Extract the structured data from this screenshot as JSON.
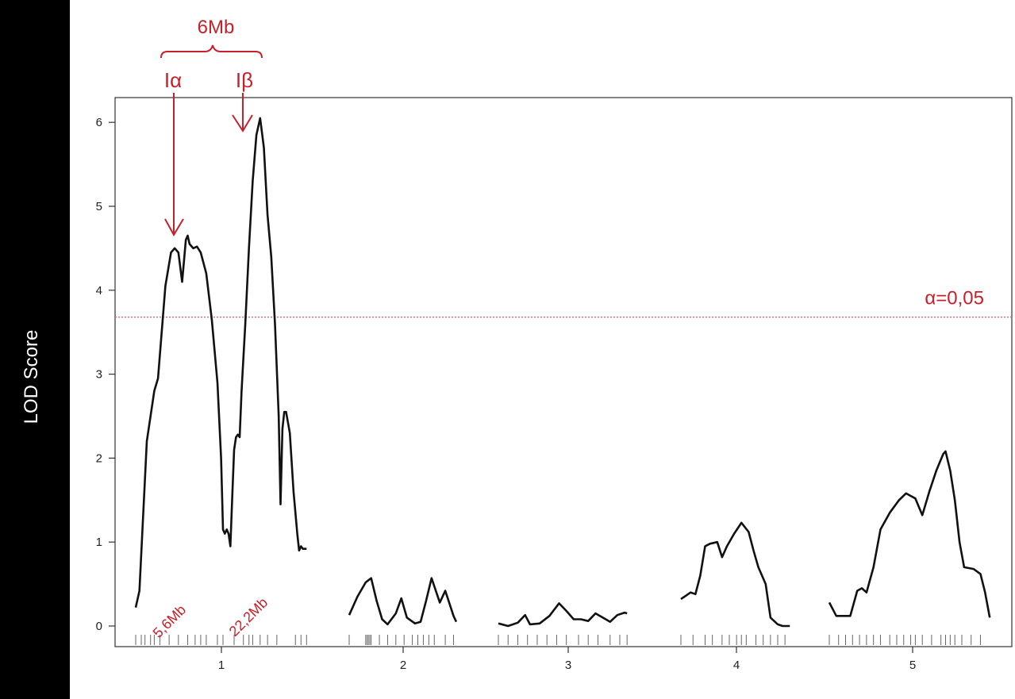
{
  "chart_data": {
    "type": "line",
    "title": "",
    "xlabel": "",
    "ylabel": "LOD Score",
    "ylim": [
      -0.25,
      6.25
    ],
    "yticks": [
      "0",
      "1",
      "2",
      "3",
      "4",
      "5",
      "6"
    ],
    "chromosomes": [
      "1",
      "2",
      "3",
      "4",
      "5"
    ],
    "threshold": {
      "label": "α=0,05",
      "value": 3.68
    },
    "grid": false,
    "annotations": {
      "bracket_label": "6Mb",
      "peaks": [
        {
          "label": "Iα",
          "position_label": "5,6Mb",
          "lod": 4.6
        },
        {
          "label": "Iβ",
          "position_label": "22,2Mb",
          "lod": 6.05
        }
      ]
    },
    "series": [
      {
        "chromosome": "1",
        "points": [
          [
            0,
            0.22
          ],
          [
            2,
            0.42
          ],
          [
            6,
            2.2
          ],
          [
            10,
            2.8
          ],
          [
            12,
            2.95
          ],
          [
            16,
            4.05
          ],
          [
            19,
            4.45
          ],
          [
            21,
            4.5
          ],
          [
            23,
            4.45
          ],
          [
            25,
            4.1
          ],
          [
            27,
            4.6
          ],
          [
            28,
            4.65
          ],
          [
            29,
            4.55
          ],
          [
            31,
            4.5
          ],
          [
            33,
            4.52
          ],
          [
            35,
            4.45
          ],
          [
            38,
            4.2
          ],
          [
            41,
            3.65
          ],
          [
            44,
            2.9
          ],
          [
            46,
            2.0
          ],
          [
            47,
            1.15
          ],
          [
            48,
            1.1
          ],
          [
            49,
            1.15
          ],
          [
            50,
            1.1
          ],
          [
            51,
            0.95
          ],
          [
            52,
            1.55
          ],
          [
            53,
            2.1
          ],
          [
            54,
            2.25
          ],
          [
            55,
            2.28
          ],
          [
            56,
            2.25
          ],
          [
            57,
            2.8
          ],
          [
            59,
            3.6
          ],
          [
            61,
            4.5
          ],
          [
            63,
            5.3
          ],
          [
            65,
            5.85
          ],
          [
            67,
            6.05
          ],
          [
            69,
            5.7
          ],
          [
            71,
            4.9
          ],
          [
            73,
            4.4
          ],
          [
            75,
            3.6
          ],
          [
            77,
            2.5
          ],
          [
            78,
            1.45
          ],
          [
            79,
            2.35
          ],
          [
            80,
            2.55
          ],
          [
            81,
            2.55
          ],
          [
            83,
            2.3
          ],
          [
            85,
            1.6
          ],
          [
            87,
            1.1
          ],
          [
            88,
            0.9
          ],
          [
            89,
            0.95
          ],
          [
            90,
            0.92
          ],
          [
            92,
            0.92
          ]
        ]
      },
      {
        "chromosome": "2",
        "points": [
          [
            0,
            0.13
          ],
          [
            3,
            0.35
          ],
          [
            6,
            0.52
          ],
          [
            8,
            0.57
          ],
          [
            10,
            0.3
          ],
          [
            12,
            0.08
          ],
          [
            14,
            0.02
          ],
          [
            17,
            0.15
          ],
          [
            19,
            0.33
          ],
          [
            21,
            0.1
          ],
          [
            24,
            0.03
          ],
          [
            26,
            0.05
          ],
          [
            28,
            0.3
          ],
          [
            30,
            0.57
          ],
          [
            33,
            0.28
          ],
          [
            35,
            0.42
          ],
          [
            38,
            0.12
          ],
          [
            39,
            0.05
          ]
        ]
      },
      {
        "chromosome": "3",
        "points": [
          [
            0,
            0.03
          ],
          [
            4,
            0.0
          ],
          [
            8,
            0.04
          ],
          [
            11,
            0.13
          ],
          [
            13,
            0.02
          ],
          [
            17,
            0.03
          ],
          [
            21,
            0.12
          ],
          [
            25,
            0.27
          ],
          [
            28,
            0.18
          ],
          [
            31,
            0.08
          ],
          [
            34,
            0.08
          ],
          [
            37,
            0.06
          ],
          [
            40,
            0.15
          ],
          [
            43,
            0.1
          ],
          [
            46,
            0.05
          ],
          [
            49,
            0.13
          ],
          [
            52,
            0.16
          ],
          [
            53,
            0.15
          ]
        ]
      },
      {
        "chromosome": "4",
        "points": [
          [
            0,
            0.32
          ],
          [
            2,
            0.36
          ],
          [
            4,
            0.4
          ],
          [
            6,
            0.38
          ],
          [
            8,
            0.6
          ],
          [
            10,
            0.95
          ],
          [
            12,
            0.98
          ],
          [
            15,
            1.0
          ],
          [
            17,
            0.82
          ],
          [
            19,
            0.95
          ],
          [
            22,
            1.1
          ],
          [
            25,
            1.23
          ],
          [
            28,
            1.12
          ],
          [
            30,
            0.9
          ],
          [
            32,
            0.7
          ],
          [
            35,
            0.5
          ],
          [
            37,
            0.1
          ],
          [
            40,
            0.02
          ],
          [
            42,
            0.0
          ],
          [
            45,
            0.0
          ]
        ]
      },
      {
        "chromosome": "5",
        "points": [
          [
            0,
            0.28
          ],
          [
            3,
            0.12
          ],
          [
            6,
            0.12
          ],
          [
            9,
            0.12
          ],
          [
            12,
            0.42
          ],
          [
            14,
            0.45
          ],
          [
            16,
            0.4
          ],
          [
            19,
            0.7
          ],
          [
            22,
            1.15
          ],
          [
            26,
            1.35
          ],
          [
            30,
            1.5
          ],
          [
            33,
            1.58
          ],
          [
            35,
            1.55
          ],
          [
            37,
            1.52
          ],
          [
            40,
            1.32
          ],
          [
            43,
            1.6
          ],
          [
            46,
            1.85
          ],
          [
            49,
            2.05
          ],
          [
            50,
            2.08
          ],
          [
            52,
            1.85
          ],
          [
            54,
            1.5
          ],
          [
            56,
            1.0
          ],
          [
            58,
            0.7
          ],
          [
            62,
            0.68
          ],
          [
            65,
            0.62
          ],
          [
            67,
            0.4
          ],
          [
            69,
            0.1
          ]
        ]
      }
    ],
    "markers": [
      {
        "chromosome": "1",
        "positions": [
          0,
          3,
          5,
          8,
          10,
          13,
          18,
          23,
          28,
          32,
          35,
          38,
          44,
          47,
          53,
          58,
          61,
          63,
          67,
          71,
          76,
          86,
          89,
          92
        ]
      },
      {
        "chromosome": "2",
        "positions": [
          0,
          6,
          6.5,
          7,
          7.5,
          8,
          11,
          14,
          17,
          20,
          23,
          25,
          27,
          29,
          31,
          35,
          38
        ]
      },
      {
        "chromosome": "3",
        "positions": [
          0,
          4,
          8,
          12,
          16,
          20,
          24,
          28,
          33,
          37,
          41,
          46,
          50,
          53
        ]
      },
      {
        "chromosome": "4",
        "positions": [
          0,
          5,
          10,
          13,
          17,
          20,
          23,
          25,
          27,
          31,
          34,
          37,
          40,
          43
        ]
      },
      {
        "chromosome": "5",
        "positions": [
          0,
          4,
          7,
          10,
          13,
          16,
          19,
          22,
          26,
          29,
          32,
          35,
          37,
          40,
          44,
          48,
          50,
          52,
          54,
          57,
          61,
          65
        ]
      }
    ]
  }
}
